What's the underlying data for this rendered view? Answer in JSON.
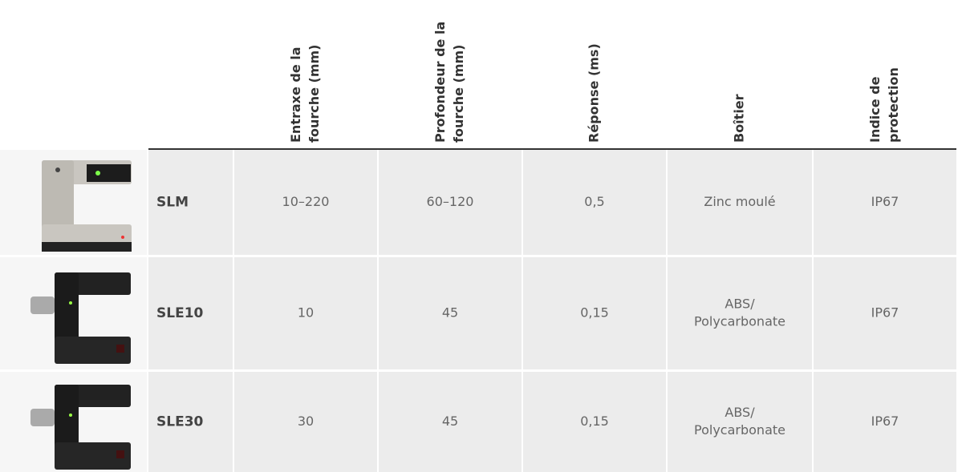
{
  "table": {
    "columns": [
      {
        "lines": [
          "Entraxe de la",
          "fourche (mm)"
        ]
      },
      {
        "lines": [
          "Profondeur de la",
          "fourche (mm)"
        ]
      },
      {
        "lines": [
          "Réponse (ms)"
        ]
      },
      {
        "lines": [
          "Boîtier"
        ]
      },
      {
        "lines": [
          "Indice de",
          "protection"
        ]
      }
    ],
    "rows": [
      {
        "name": "SLM",
        "cells": [
          [
            "10–220"
          ],
          [
            "60–120"
          ],
          [
            "0,5"
          ],
          [
            "Zinc moulé"
          ],
          [
            "IP67"
          ]
        ]
      },
      {
        "name": "SLE10",
        "cells": [
          [
            "10"
          ],
          [
            "45"
          ],
          [
            "0,15"
          ],
          [
            "ABS/",
            "Polycarbonate"
          ],
          [
            "IP67"
          ]
        ]
      },
      {
        "name": "SLE30",
        "cells": [
          [
            "30"
          ],
          [
            "45"
          ],
          [
            "0,15"
          ],
          [
            "ABS/",
            "Polycarbonate"
          ],
          [
            "IP67"
          ]
        ]
      }
    ]
  }
}
